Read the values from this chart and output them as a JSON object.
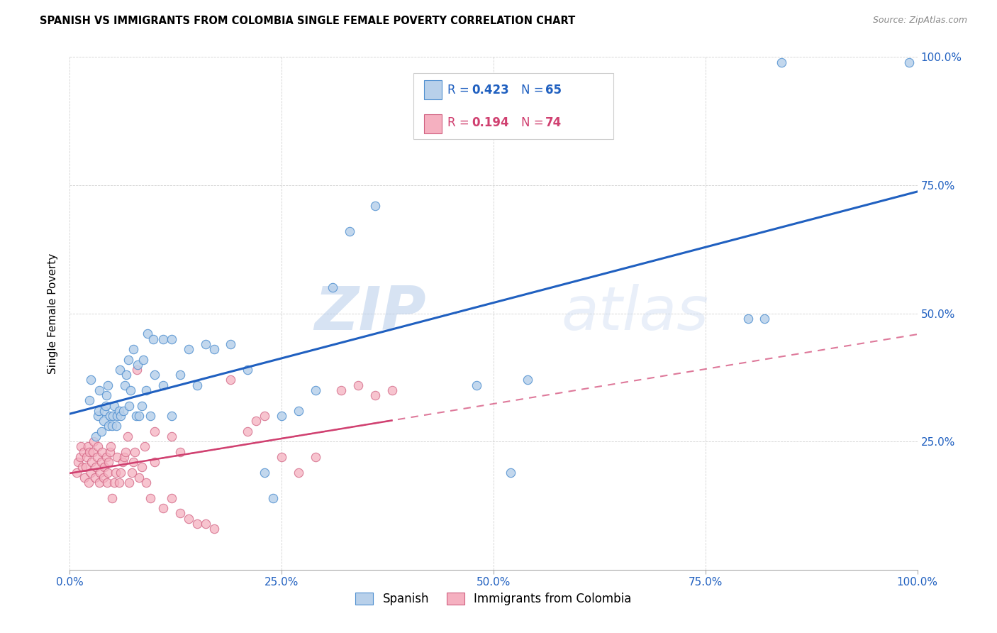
{
  "title": "SPANISH VS IMMIGRANTS FROM COLOMBIA SINGLE FEMALE POVERTY CORRELATION CHART",
  "source": "Source: ZipAtlas.com",
  "ylabel": "Single Female Poverty",
  "xlim": [
    0,
    1.0
  ],
  "ylim": [
    0,
    1.0
  ],
  "xtick_labels": [
    "0.0%",
    "",
    "",
    "",
    "25.0%",
    "",
    "",
    "",
    "50.0%",
    "",
    "",
    "",
    "75.0%",
    "",
    "",
    "",
    "100.0%"
  ],
  "xtick_vals": [
    0.0,
    0.0625,
    0.125,
    0.1875,
    0.25,
    0.3125,
    0.375,
    0.4375,
    0.5,
    0.5625,
    0.625,
    0.6875,
    0.75,
    0.8125,
    0.875,
    0.9375,
    1.0
  ],
  "ytick_labels": [
    "25.0%",
    "50.0%",
    "75.0%",
    "100.0%"
  ],
  "ytick_vals": [
    0.25,
    0.5,
    0.75,
    1.0
  ],
  "legend_R_spanish": "0.423",
  "legend_N_spanish": "65",
  "legend_R_colombia": "0.194",
  "legend_N_colombia": "74",
  "spanish_color": "#b8d0ea",
  "colombia_color": "#f5b0c0",
  "spanish_edge": "#5090d0",
  "colombia_edge": "#d06080",
  "line_spanish_color": "#2060c0",
  "line_colombia_color": "#d04070",
  "watermark_zip": "ZIP",
  "watermark_atlas": "atlas",
  "spanish_x": [
    0.023,
    0.025,
    0.031,
    0.033,
    0.034,
    0.035,
    0.037,
    0.04,
    0.041,
    0.042,
    0.043,
    0.045,
    0.046,
    0.047,
    0.05,
    0.051,
    0.052,
    0.055,
    0.056,
    0.058,
    0.059,
    0.06,
    0.063,
    0.065,
    0.067,
    0.069,
    0.07,
    0.072,
    0.075,
    0.078,
    0.08,
    0.082,
    0.085,
    0.087,
    0.09,
    0.092,
    0.095,
    0.098,
    0.1,
    0.11,
    0.11,
    0.12,
    0.12,
    0.13,
    0.14,
    0.15,
    0.16,
    0.17,
    0.19,
    0.21,
    0.23,
    0.24,
    0.25,
    0.27,
    0.29,
    0.31,
    0.33,
    0.36,
    0.48,
    0.52,
    0.54,
    0.8,
    0.82,
    0.84,
    0.99
  ],
  "spanish_y": [
    0.33,
    0.37,
    0.26,
    0.3,
    0.31,
    0.35,
    0.27,
    0.29,
    0.31,
    0.32,
    0.34,
    0.36,
    0.28,
    0.3,
    0.28,
    0.3,
    0.32,
    0.28,
    0.3,
    0.31,
    0.39,
    0.3,
    0.31,
    0.36,
    0.38,
    0.41,
    0.32,
    0.35,
    0.43,
    0.3,
    0.4,
    0.3,
    0.32,
    0.41,
    0.35,
    0.46,
    0.3,
    0.45,
    0.38,
    0.36,
    0.45,
    0.3,
    0.45,
    0.38,
    0.43,
    0.36,
    0.44,
    0.43,
    0.44,
    0.39,
    0.19,
    0.14,
    0.3,
    0.31,
    0.35,
    0.55,
    0.66,
    0.71,
    0.36,
    0.19,
    0.37,
    0.49,
    0.49,
    0.99,
    0.99
  ],
  "colombia_x": [
    0.008,
    0.01,
    0.012,
    0.013,
    0.015,
    0.016,
    0.017,
    0.019,
    0.02,
    0.021,
    0.022,
    0.023,
    0.025,
    0.026,
    0.027,
    0.028,
    0.03,
    0.031,
    0.032,
    0.033,
    0.035,
    0.036,
    0.037,
    0.038,
    0.04,
    0.041,
    0.043,
    0.044,
    0.045,
    0.046,
    0.047,
    0.048,
    0.05,
    0.052,
    0.054,
    0.056,
    0.058,
    0.06,
    0.062,
    0.064,
    0.066,
    0.068,
    0.07,
    0.073,
    0.075,
    0.077,
    0.079,
    0.082,
    0.085,
    0.088,
    0.09,
    0.095,
    0.1,
    0.1,
    0.11,
    0.12,
    0.12,
    0.13,
    0.13,
    0.14,
    0.15,
    0.16,
    0.17,
    0.19,
    0.21,
    0.22,
    0.23,
    0.25,
    0.27,
    0.29,
    0.32,
    0.34,
    0.36,
    0.38
  ],
  "colombia_y": [
    0.19,
    0.21,
    0.22,
    0.24,
    0.2,
    0.23,
    0.18,
    0.2,
    0.22,
    0.24,
    0.17,
    0.23,
    0.19,
    0.21,
    0.23,
    0.25,
    0.18,
    0.2,
    0.22,
    0.24,
    0.17,
    0.19,
    0.21,
    0.23,
    0.18,
    0.2,
    0.22,
    0.17,
    0.19,
    0.21,
    0.23,
    0.24,
    0.14,
    0.17,
    0.19,
    0.22,
    0.17,
    0.19,
    0.21,
    0.22,
    0.23,
    0.26,
    0.17,
    0.19,
    0.21,
    0.23,
    0.39,
    0.18,
    0.2,
    0.24,
    0.17,
    0.14,
    0.21,
    0.27,
    0.12,
    0.26,
    0.14,
    0.11,
    0.23,
    0.1,
    0.09,
    0.09,
    0.08,
    0.37,
    0.27,
    0.29,
    0.3,
    0.22,
    0.19,
    0.22,
    0.35,
    0.36,
    0.34,
    0.35
  ]
}
